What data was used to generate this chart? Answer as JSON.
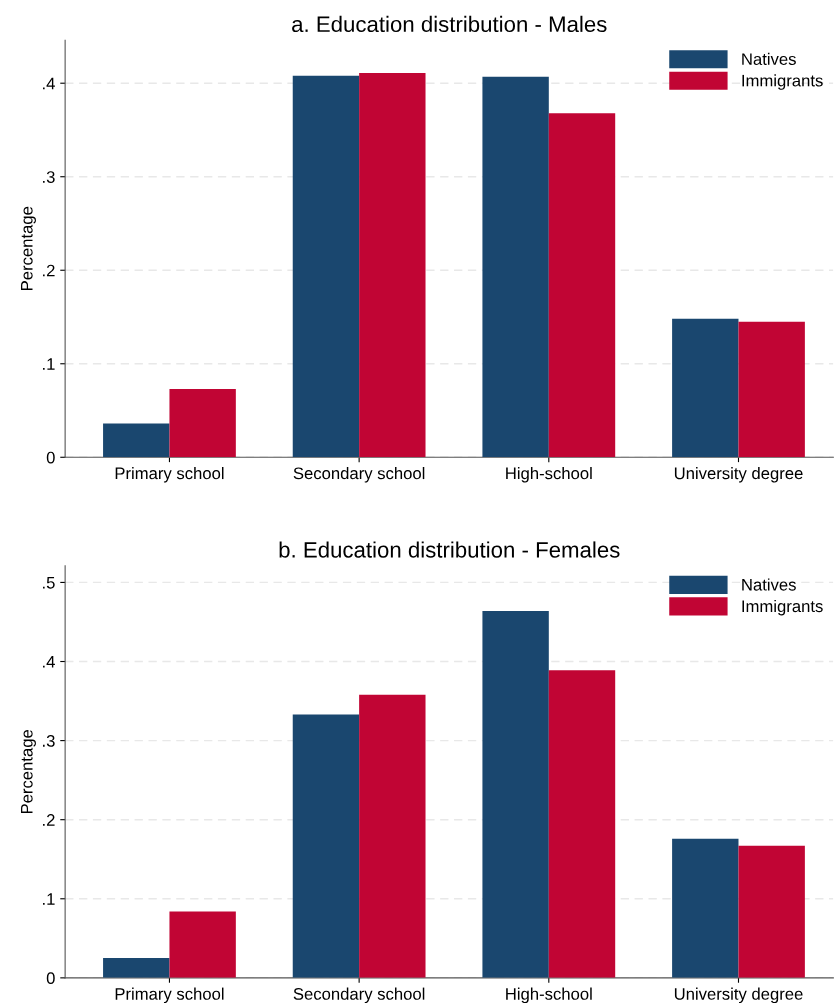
{
  "chart_data": [
    {
      "type": "bar",
      "title": "a. Education distribution - Males",
      "ylabel": "Percentage",
      "categories": [
        "Primary school",
        "Secondary school",
        "High-school",
        "University degree"
      ],
      "series": [
        {
          "name": "Natives",
          "color": "#1a476f",
          "values": [
            0.036,
            0.408,
            0.407,
            0.148
          ]
        },
        {
          "name": "Immigrants",
          "color": "#c10534",
          "values": [
            0.073,
            0.411,
            0.368,
            0.145
          ]
        }
      ],
      "ylim": [
        0,
        0.446
      ],
      "yticks": [
        {
          "value": 0,
          "label": "0"
        },
        {
          "value": 0.1,
          "label": ".1"
        },
        {
          "value": 0.2,
          "label": ".2"
        },
        {
          "value": 0.3,
          "label": ".3"
        },
        {
          "value": 0.4,
          "label": ".4"
        }
      ],
      "grid": "y",
      "legend": "top right"
    },
    {
      "type": "bar",
      "title": "b. Education distribution - Females",
      "ylabel": "Percentage",
      "categories": [
        "Primary school",
        "Secondary school",
        "High-school",
        "University degree"
      ],
      "series": [
        {
          "name": "Natives",
          "color": "#1a476f",
          "values": [
            0.025,
            0.333,
            0.464,
            0.176
          ]
        },
        {
          "name": "Immigrants",
          "color": "#c10534",
          "values": [
            0.084,
            0.358,
            0.389,
            0.167
          ]
        }
      ],
      "ylim": [
        0,
        0.521
      ],
      "yticks": [
        {
          "value": 0,
          "label": "0"
        },
        {
          "value": 0.1,
          "label": ".1"
        },
        {
          "value": 0.2,
          "label": ".2"
        },
        {
          "value": 0.3,
          "label": ".3"
        },
        {
          "value": 0.4,
          "label": ".4"
        },
        {
          "value": 0.5,
          "label": ".5"
        }
      ],
      "grid": "y",
      "legend": "top right"
    }
  ]
}
